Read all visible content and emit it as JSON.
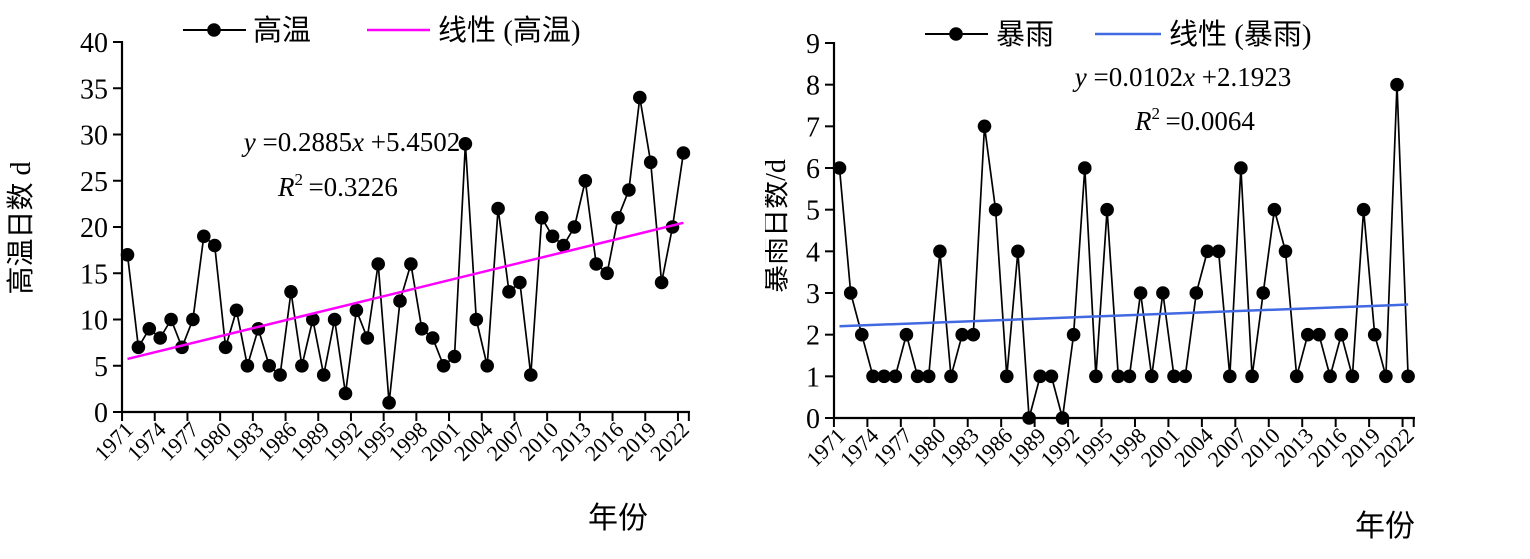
{
  "figure": {
    "background": "#FFFFFF"
  },
  "chart_data": [
    {
      "id": "high-temp",
      "type": "line",
      "title": "",
      "xlabel": "年份",
      "ylabel": "高温日数 d",
      "ylim": [
        0,
        40
      ],
      "ytick_step": 5,
      "grid": false,
      "legend_position": "top",
      "categories": [
        1971,
        1972,
        1973,
        1974,
        1975,
        1976,
        1977,
        1978,
        1979,
        1980,
        1981,
        1982,
        1983,
        1984,
        1985,
        1986,
        1987,
        1988,
        1989,
        1990,
        1991,
        1992,
        1993,
        1994,
        1995,
        1996,
        1997,
        1998,
        1999,
        2000,
        2001,
        2002,
        2003,
        2004,
        2005,
        2006,
        2007,
        2008,
        2009,
        2010,
        2011,
        2012,
        2013,
        2014,
        2015,
        2016,
        2017,
        2018,
        2019,
        2020,
        2021,
        2022
      ],
      "xtick_labels": [
        "1971",
        "1974",
        "1977",
        "1980",
        "1983",
        "1986",
        "1989",
        "1992",
        "1995",
        "1998",
        "2001",
        "2004",
        "2007",
        "2010",
        "2013",
        "2016",
        "2019",
        "2022"
      ],
      "series": [
        {
          "name": "高温",
          "color": "#000000",
          "marker": "circle",
          "values": [
            17,
            7,
            9,
            8,
            10,
            7,
            10,
            19,
            18,
            7,
            11,
            5,
            9,
            5,
            4,
            13,
            5,
            10,
            4,
            10,
            2,
            11,
            8,
            16,
            1,
            12,
            16,
            9,
            8,
            5,
            6,
            29,
            10,
            5,
            22,
            13,
            14,
            4,
            21,
            19,
            18,
            20,
            25,
            16,
            15,
            21,
            24,
            34,
            27,
            14,
            20,
            28
          ]
        }
      ],
      "trend": {
        "name": "线性 (高温)",
        "color": "#FF00FF",
        "slope": 0.2885,
        "intercept": 5.4502,
        "equation": "y =0.2885x +5.4502",
        "r_squared": "R^2=0.3226"
      }
    },
    {
      "id": "rainstorm",
      "type": "line",
      "title": "",
      "xlabel": "年份",
      "ylabel": "暴雨日数/d",
      "ylim": [
        0,
        9
      ],
      "ytick_step": 1,
      "grid": false,
      "legend_position": "top",
      "categories": [
        1971,
        1972,
        1973,
        1974,
        1975,
        1976,
        1977,
        1978,
        1979,
        1980,
        1981,
        1982,
        1983,
        1984,
        1985,
        1986,
        1987,
        1988,
        1989,
        1990,
        1991,
        1992,
        1993,
        1994,
        1995,
        1996,
        1997,
        1998,
        1999,
        2000,
        2001,
        2002,
        2003,
        2004,
        2005,
        2006,
        2007,
        2008,
        2009,
        2010,
        2011,
        2012,
        2013,
        2014,
        2015,
        2016,
        2017,
        2018,
        2019,
        2020,
        2021,
        2022
      ],
      "xtick_labels": [
        "1971",
        "1974",
        "1977",
        "1980",
        "1983",
        "1986",
        "1989",
        "1992",
        "1995",
        "1998",
        "2001",
        "2004",
        "2007",
        "2010",
        "2013",
        "2016",
        "2019",
        "2022"
      ],
      "series": [
        {
          "name": "暴雨",
          "color": "#000000",
          "marker": "circle",
          "values": [
            6,
            3,
            2,
            1,
            1,
            1,
            2,
            1,
            1,
            4,
            1,
            2,
            2,
            7,
            5,
            1,
            4,
            0,
            1,
            1,
            0,
            2,
            6,
            1,
            5,
            1,
            1,
            3,
            1,
            3,
            1,
            1,
            3,
            4,
            4,
            1,
            6,
            1,
            3,
            5,
            4,
            1,
            2,
            2,
            1,
            2,
            1,
            5,
            2,
            1,
            8,
            1
          ]
        }
      ],
      "trend": {
        "name": "线性 (暴雨)",
        "color": "#4169E1",
        "slope": 0.0102,
        "intercept": 2.1923,
        "equation": "y =0.0102x +2.1923",
        "r_squared": "R^2=0.0064"
      }
    }
  ]
}
